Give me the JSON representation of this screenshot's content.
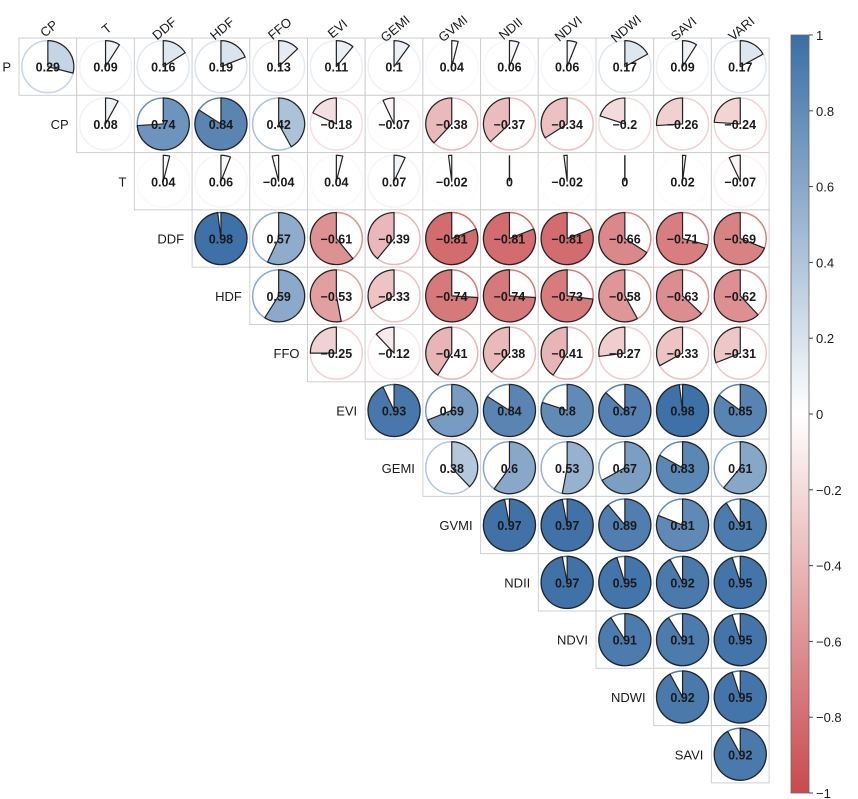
{
  "chart_data": {
    "type": "heatmap",
    "subtype": "correlation-pie-matrix",
    "layout": "upper-triangle",
    "columns": [
      "CP",
      "T",
      "DDF",
      "HDF",
      "FFO",
      "EVI",
      "GEMI",
      "GVMI",
      "NDII",
      "NDVI",
      "NDWI",
      "SAVI",
      "VARI"
    ],
    "row_labels": [
      "P",
      "CP",
      "T",
      "DDF",
      "HDF",
      "FFO",
      "EVI",
      "GEMI",
      "GVMI",
      "NDII",
      "NDVI",
      "NDWI",
      "SAVI"
    ],
    "values": [
      [
        0.29,
        0.09,
        0.16,
        0.19,
        0.13,
        0.11,
        0.1,
        0.04,
        0.06,
        0.06,
        0.17,
        0.09,
        0.17
      ],
      [
        null,
        0.08,
        0.74,
        0.84,
        0.42,
        -0.18,
        -0.07,
        -0.38,
        -0.37,
        -0.34,
        -0.2,
        -0.26,
        -0.24
      ],
      [
        null,
        null,
        0.04,
        0.06,
        -0.04,
        0.04,
        0.07,
        -0.02,
        0,
        -0.02,
        0,
        0.02,
        -0.07
      ],
      [
        null,
        null,
        null,
        0.98,
        0.57,
        -0.61,
        -0.39,
        -0.81,
        -0.81,
        -0.81,
        -0.66,
        -0.71,
        -0.69
      ],
      [
        null,
        null,
        null,
        null,
        0.59,
        -0.53,
        -0.33,
        -0.74,
        -0.74,
        -0.73,
        -0.58,
        -0.63,
        -0.62
      ],
      [
        null,
        null,
        null,
        null,
        null,
        -0.25,
        -0.12,
        -0.41,
        -0.38,
        -0.41,
        -0.27,
        -0.33,
        -0.31
      ],
      [
        null,
        null,
        null,
        null,
        null,
        null,
        0.93,
        0.69,
        0.84,
        0.8,
        0.87,
        0.98,
        0.85
      ],
      [
        null,
        null,
        null,
        null,
        null,
        null,
        null,
        0.38,
        0.6,
        0.53,
        0.67,
        0.83,
        0.61
      ],
      [
        null,
        null,
        null,
        null,
        null,
        null,
        null,
        null,
        0.97,
        0.97,
        0.89,
        0.81,
        0.91
      ],
      [
        null,
        null,
        null,
        null,
        null,
        null,
        null,
        null,
        null,
        0.97,
        0.95,
        0.92,
        0.95
      ],
      [
        null,
        null,
        null,
        null,
        null,
        null,
        null,
        null,
        null,
        null,
        0.91,
        0.91,
        0.95
      ],
      [
        null,
        null,
        null,
        null,
        null,
        null,
        null,
        null,
        null,
        null,
        null,
        0.92,
        0.95
      ],
      [
        null,
        null,
        null,
        null,
        null,
        null,
        null,
        null,
        null,
        null,
        null,
        null,
        0.92
      ]
    ],
    "value_labels": [
      [
        "0.29",
        "0.09",
        "0.16",
        "0.19",
        "0.13",
        "0.11",
        "0.1",
        "0.04",
        "0.06",
        "0.06",
        "0.17",
        "0.09",
        "0.17"
      ],
      [
        null,
        "0.08",
        "0.74",
        "0.84",
        "0.42",
        "−0.18",
        "−0.07",
        "−0.38",
        "−0.37",
        "−0.34",
        "−0.2",
        "−0.26",
        "−0.24"
      ],
      [
        null,
        null,
        "0.04",
        "0.06",
        "−0.04",
        "0.04",
        "0.07",
        "−0.02",
        "0",
        "−0.02",
        "0",
        "0.02",
        "−0.07"
      ],
      [
        null,
        null,
        null,
        "0.98",
        "0.57",
        "−0.61",
        "−0.39",
        "−0.81",
        "−0.81",
        "−0.81",
        "−0.66",
        "−0.71",
        "−0.69"
      ],
      [
        null,
        null,
        null,
        null,
        "0.59",
        "−0.53",
        "−0.33",
        "−0.74",
        "−0.74",
        "−0.73",
        "−0.58",
        "−0.63",
        "−0.62"
      ],
      [
        null,
        null,
        null,
        null,
        null,
        "−0.25",
        "−0.12",
        "−0.41",
        "−0.38",
        "−0.41",
        "−0.27",
        "−0.33",
        "−0.31"
      ],
      [
        null,
        null,
        null,
        null,
        null,
        null,
        "0.93",
        "0.69",
        "0.84",
        "0.8",
        "0.87",
        "0.98",
        "0.85"
      ],
      [
        null,
        null,
        null,
        null,
        null,
        null,
        null,
        "0.38",
        "0.6",
        "0.53",
        "0.67",
        "0.83",
        "0.61"
      ],
      [
        null,
        null,
        null,
        null,
        null,
        null,
        null,
        null,
        "0.97",
        "0.97",
        "0.89",
        "0.81",
        "0.91"
      ],
      [
        null,
        null,
        null,
        null,
        null,
        null,
        null,
        null,
        null,
        "0.97",
        "0.95",
        "0.92",
        "0.95"
      ],
      [
        null,
        null,
        null,
        null,
        null,
        null,
        null,
        null,
        null,
        null,
        "0.91",
        "0.91",
        "0.95"
      ],
      [
        null,
        null,
        null,
        null,
        null,
        null,
        null,
        null,
        null,
        null,
        null,
        "0.92",
        "0.95"
      ],
      [
        null,
        null,
        null,
        null,
        null,
        null,
        null,
        null,
        null,
        null,
        null,
        null,
        "0.92"
      ]
    ],
    "colorbar": {
      "range": [
        -1,
        1
      ],
      "ticks": [
        1,
        0.8,
        0.6,
        0.4,
        0.2,
        0,
        -0.2,
        -0.4,
        -0.6,
        -0.8,
        -1
      ],
      "tick_labels": [
        "1",
        "0.8",
        "0.6",
        "0.4",
        "0.2",
        "0",
        "−0.2",
        "−0.4",
        "−0.6",
        "−0.8",
        "−1"
      ],
      "colors": {
        "negative": "#c84a4d",
        "zero": "#ffffff",
        "positive": "#3a6ea5"
      }
    },
    "grid": true
  }
}
